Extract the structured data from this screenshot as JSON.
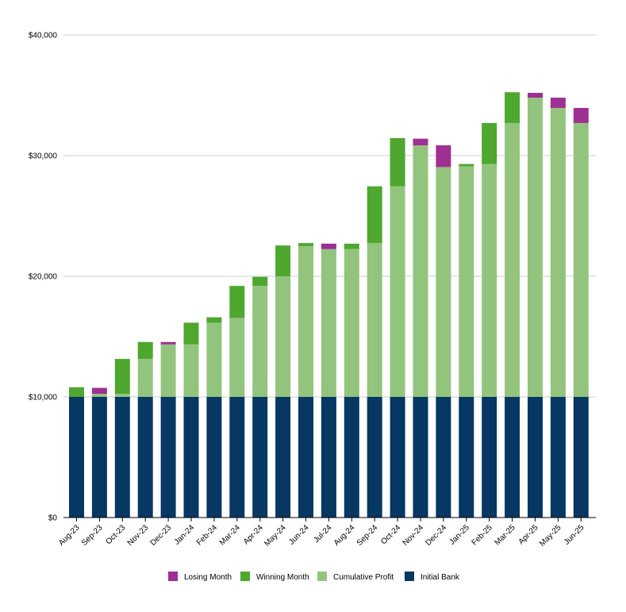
{
  "chart_data": {
    "type": "bar",
    "stacked": true,
    "categories": [
      "Aug-23",
      "Sep-23",
      "Oct-23",
      "Nov-23",
      "Dec-23",
      "Jan-24",
      "Feb-24",
      "Mar-24",
      "Apr-24",
      "May-24",
      "Jun-24",
      "Jul-24",
      "Aug-24",
      "Sep-24",
      "Oct-24",
      "Nov-24",
      "Dec-24",
      "Jan-25",
      "Feb-25",
      "Mar-25",
      "Apr-25",
      "May-25",
      "Jun-25"
    ],
    "series": [
      {
        "name": "Initial Bank",
        "color": "#073763",
        "values": [
          10000,
          10000,
          10000,
          10000,
          10000,
          10000,
          10000,
          10000,
          10000,
          10000,
          10000,
          10000,
          10000,
          10000,
          10000,
          10000,
          10000,
          10000,
          10000,
          10000,
          10000,
          10000,
          10000
        ]
      },
      {
        "name": "Cumulative Profit",
        "color": "#93c47d",
        "values": [
          0,
          250,
          250,
          3150,
          4350,
          4350,
          6150,
          6550,
          9200,
          10000,
          12500,
          12250,
          12250,
          12750,
          17450,
          20850,
          19050,
          19100,
          19300,
          22700,
          24800,
          23950,
          22700
        ]
      },
      {
        "name": "Winning Month",
        "color": "#4ea72e",
        "values": [
          800,
          0,
          2900,
          1400,
          0,
          1800,
          450,
          2650,
          750,
          2550,
          250,
          0,
          450,
          4700,
          4000,
          0,
          0,
          200,
          3400,
          2550,
          0,
          0,
          0
        ]
      },
      {
        "name": "Losing Month",
        "color": "#9e2f93",
        "values": [
          0,
          500,
          0,
          0,
          200,
          0,
          0,
          0,
          0,
          0,
          0,
          450,
          0,
          0,
          0,
          550,
          1800,
          0,
          0,
          0,
          400,
          850,
          1250
        ]
      }
    ],
    "legend_order": [
      "Losing Month",
      "Winning Month",
      "Cumulative Profit",
      "Initial Bank"
    ],
    "legend_position": "bottom",
    "y_ticks": [
      "$0",
      "$10,000",
      "$20,000",
      "$30,000",
      "$40,000"
    ],
    "ylim": [
      0,
      40000
    ],
    "grid": true,
    "title": "",
    "xlabel": "",
    "ylabel": ""
  }
}
